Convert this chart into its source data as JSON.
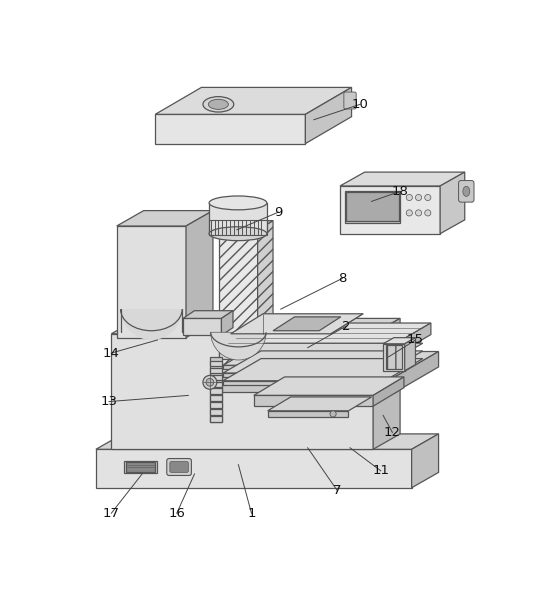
{
  "bg_color": "#ffffff",
  "lc": "#555555",
  "figsize": [
    5.41,
    6.0
  ],
  "dpi": 100,
  "annotations": [
    [
      "1",
      237,
      573,
      220,
      510
    ],
    [
      "2",
      360,
      330,
      310,
      358
    ],
    [
      "7",
      348,
      543,
      310,
      488
    ],
    [
      "8",
      355,
      268,
      275,
      308
    ],
    [
      "9",
      272,
      182,
      218,
      205
    ],
    [
      "10",
      378,
      42,
      318,
      62
    ],
    [
      "11",
      405,
      518,
      365,
      488
    ],
    [
      "12",
      420,
      468,
      408,
      446
    ],
    [
      "13",
      52,
      428,
      155,
      420
    ],
    [
      "14",
      55,
      365,
      115,
      348
    ],
    [
      "15",
      450,
      348,
      415,
      370
    ],
    [
      "16",
      140,
      573,
      163,
      522
    ],
    [
      "17",
      55,
      573,
      95,
      522
    ],
    [
      "18",
      430,
      155,
      393,
      168
    ]
  ]
}
